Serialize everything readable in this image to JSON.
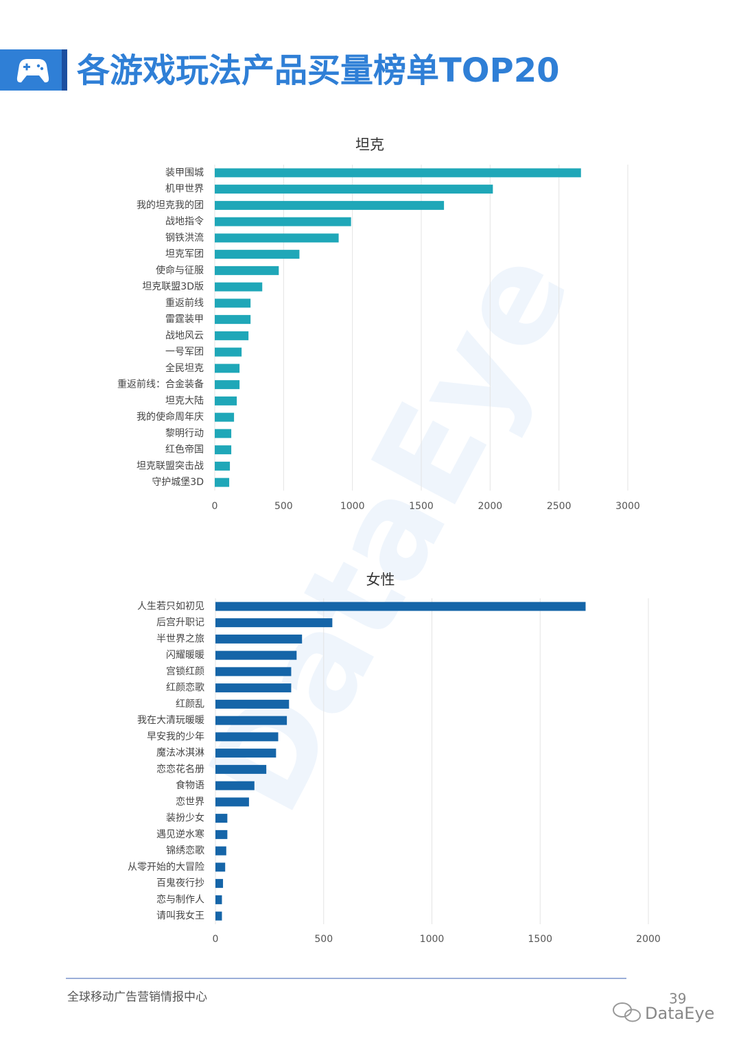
{
  "header": {
    "title": "各游戏玩法产品买量榜单TOP20"
  },
  "chart_data": [
    {
      "type": "barh",
      "title": "坦克",
      "color": "#1fa7b8",
      "categories": [
        "装甲围城",
        "机甲世界",
        "我的坦克我的团",
        "战地指令",
        "钢铁洪流",
        "坦克军团",
        "使命与征服",
        "坦克联盟3D版",
        "重返前线",
        "雷霆装甲",
        "战地风云",
        "一号军团",
        "全民坦克",
        "重返前线：合金装备",
        "坦克大陆",
        "我的使命周年庆",
        "黎明行动",
        "红色帝国",
        "坦克联盟突击战",
        "守护城堡3D"
      ],
      "values": [
        2660,
        2020,
        1665,
        990,
        900,
        615,
        465,
        345,
        260,
        260,
        245,
        195,
        180,
        180,
        160,
        140,
        120,
        120,
        110,
        105
      ],
      "xlim": [
        0,
        3000
      ],
      "xticks": [
        0,
        500,
        1000,
        1500,
        2000,
        2500,
        3000
      ],
      "grid": true
    },
    {
      "type": "barh",
      "title": "女性",
      "color": "#1565a8",
      "categories": [
        "人生若只如初见",
        "后宫升职记",
        "半世界之旅",
        "闪耀暖暖",
        "宫锁红颜",
        "红颜恋歌",
        "红颜乱",
        "我在大清玩暖暖",
        "早安我的少年",
        "魔法冰淇淋",
        "恋恋花名册",
        "食物语",
        "恋世界",
        "装扮少女",
        "遇见逆水寒",
        "锦绣恋歌",
        "从零开始的大冒险",
        "百鬼夜行抄",
        "恋与制作人",
        "请叫我女王"
      ],
      "values": [
        1710,
        540,
        400,
        375,
        350,
        350,
        340,
        330,
        290,
        280,
        235,
        180,
        155,
        55,
        55,
        50,
        45,
        35,
        30,
        30
      ],
      "xlim": [
        0,
        2000
      ],
      "xticks": [
        0,
        500,
        1000,
        1500,
        2000
      ],
      "grid": true
    }
  ],
  "watermark": "DataEye",
  "footer": {
    "text": "全球移动广告营销情报中心",
    "page": "39",
    "brand": "DataEye"
  }
}
